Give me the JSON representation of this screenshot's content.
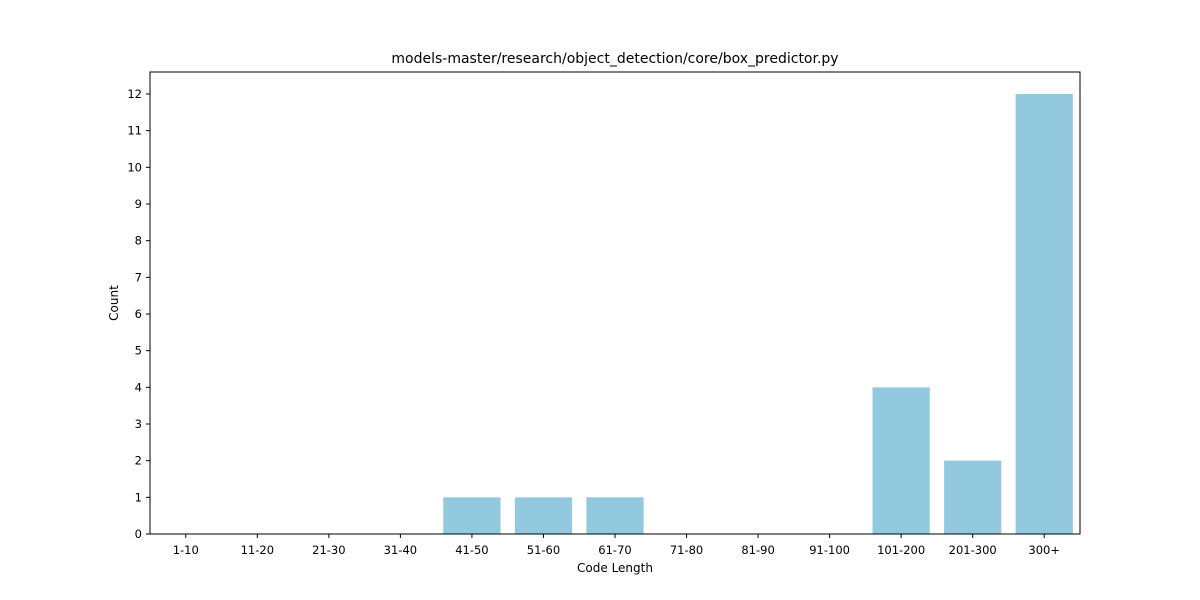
{
  "chart_data": {
    "type": "bar",
    "title": "models-master/research/object_detection/core/box_predictor.py",
    "xlabel": "Code Length",
    "ylabel": "Count",
    "categories": [
      "1-10",
      "11-20",
      "21-30",
      "31-40",
      "41-50",
      "51-60",
      "61-70",
      "71-80",
      "81-90",
      "91-100",
      "101-200",
      "201-300",
      "300+"
    ],
    "values": [
      0,
      0,
      0,
      0,
      1,
      1,
      1,
      0,
      0,
      0,
      4,
      2,
      12
    ],
    "ylim": [
      0,
      12.6
    ],
    "yticks": [
      0,
      1,
      2,
      3,
      4,
      5,
      6,
      7,
      8,
      9,
      10,
      11,
      12
    ],
    "grid": false,
    "bar_color": "#92c9df"
  }
}
